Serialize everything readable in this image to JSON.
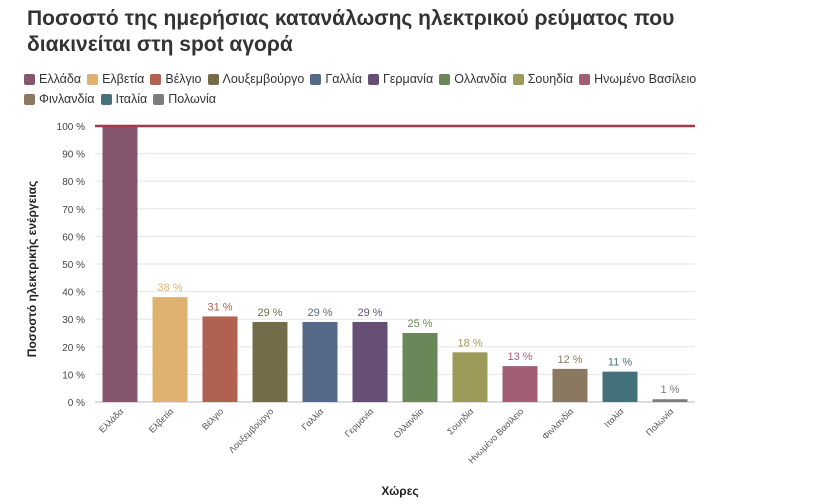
{
  "chart_data": {
    "type": "bar",
    "title": "Ποσοστό της ημερήσιας κατανάλωσης ηλεκτρικού ρεύματος που διακινείται στη spot αγορά",
    "xlabel": "Χώρες",
    "ylabel": "Ποσοστό ηλεκτρικής ενέργειας",
    "ylim": [
      0,
      100
    ],
    "yticks": [
      0,
      10,
      20,
      30,
      40,
      50,
      60,
      70,
      80,
      90,
      100
    ],
    "ytick_suffix": " %",
    "reference_line": {
      "value": 100,
      "color": "#a23a48"
    },
    "grid": true,
    "legend_position": "top-left",
    "categories": [
      "Ελλάδα",
      "Ελβετία",
      "Βέλγιο",
      "Λουξεμβούργο",
      "Γαλλία",
      "Γερμανία",
      "Ολλανδία",
      "Σουηδία",
      "Ηνωμένο Βασίλειο",
      "Φινλανδία",
      "Ιταλία",
      "Πολωνία"
    ],
    "values": [
      100,
      38,
      31,
      29,
      29,
      29,
      25,
      18,
      13,
      12,
      11,
      1
    ],
    "data_labels": [
      "",
      "38 %",
      "31 %",
      "29 %",
      "29 %",
      "29 %",
      "25 %",
      "18 %",
      "13 %",
      "12 %",
      "11 %",
      "1 %"
    ],
    "colors": [
      "#86566f",
      "#deb26e",
      "#b0614f",
      "#746c48",
      "#546888",
      "#664f74",
      "#698758",
      "#9d9b5a",
      "#a15e74",
      "#8a7960",
      "#44727a",
      "#7c7c7c"
    ]
  }
}
